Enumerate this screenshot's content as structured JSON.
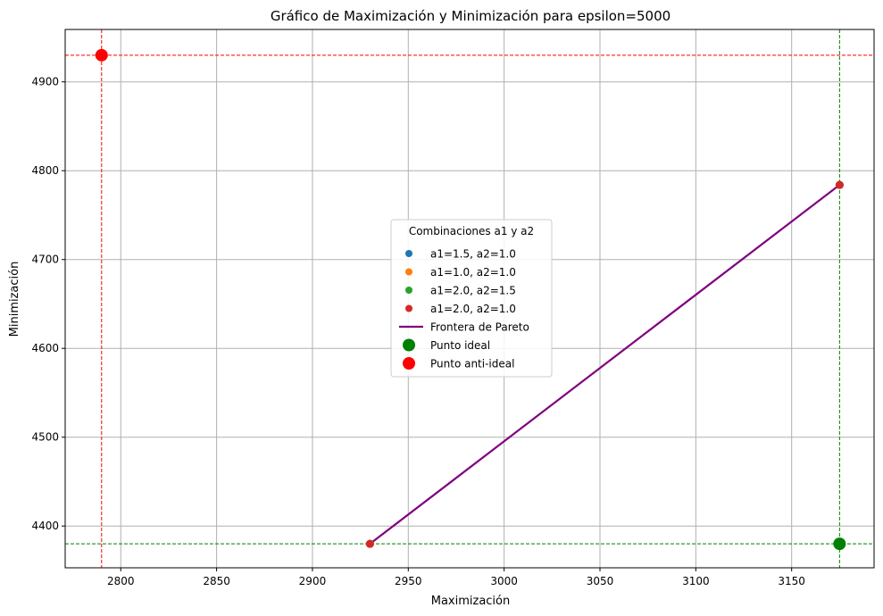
{
  "chart_data": {
    "type": "scatter",
    "title": "Gráfico de Maximización y Minimización para epsilon=5000",
    "xlabel": "Maximización",
    "ylabel": "Minimización",
    "xlim": [
      2771,
      3193
    ],
    "ylim": [
      4353,
      4959
    ],
    "xticks": [
      2800,
      2850,
      2900,
      2950,
      3000,
      3050,
      3100,
      3150
    ],
    "yticks": [
      4400,
      4500,
      4600,
      4700,
      4800,
      4900
    ],
    "grid": true,
    "legend": {
      "title": "Combinaciones a1 y a2",
      "placement": "center"
    },
    "series": [
      {
        "name": "a1=1.5, a2=1.0",
        "kind": "scatter",
        "color": "#1f77b4",
        "points": [
          [
            2930,
            4380
          ],
          [
            3175,
            4784
          ]
        ]
      },
      {
        "name": "a1=1.0, a2=1.0",
        "kind": "scatter",
        "color": "#ff7f0e",
        "points": [
          [
            2930,
            4380
          ],
          [
            3175,
            4784
          ]
        ]
      },
      {
        "name": "a1=2.0, a2=1.5",
        "kind": "scatter",
        "color": "#2ca02c",
        "points": [
          [
            2930,
            4380
          ],
          [
            3175,
            4784
          ]
        ]
      },
      {
        "name": "a1=2.0, a2=1.0",
        "kind": "scatter",
        "color": "#d62728",
        "points": [
          [
            2930,
            4380
          ],
          [
            3175,
            4784
          ]
        ]
      },
      {
        "name": "Frontera de Pareto",
        "kind": "line",
        "color": "#800080",
        "points": [
          [
            2930,
            4380
          ],
          [
            3175,
            4784
          ]
        ]
      },
      {
        "name": "Punto ideal",
        "kind": "marker",
        "color": "#008000",
        "points": [
          [
            3175,
            4380
          ]
        ]
      },
      {
        "name": "Punto anti-ideal",
        "kind": "marker",
        "color": "#ff0000",
        "points": [
          [
            2790,
            4930
          ]
        ]
      }
    ],
    "reference_lines": [
      {
        "orientation": "vertical",
        "value": 2790,
        "color": "#ff0000"
      },
      {
        "orientation": "horizontal",
        "value": 4930,
        "color": "#ff0000"
      },
      {
        "orientation": "vertical",
        "value": 3175,
        "color": "#008000"
      },
      {
        "orientation": "horizontal",
        "value": 4380,
        "color": "#008000"
      }
    ]
  }
}
